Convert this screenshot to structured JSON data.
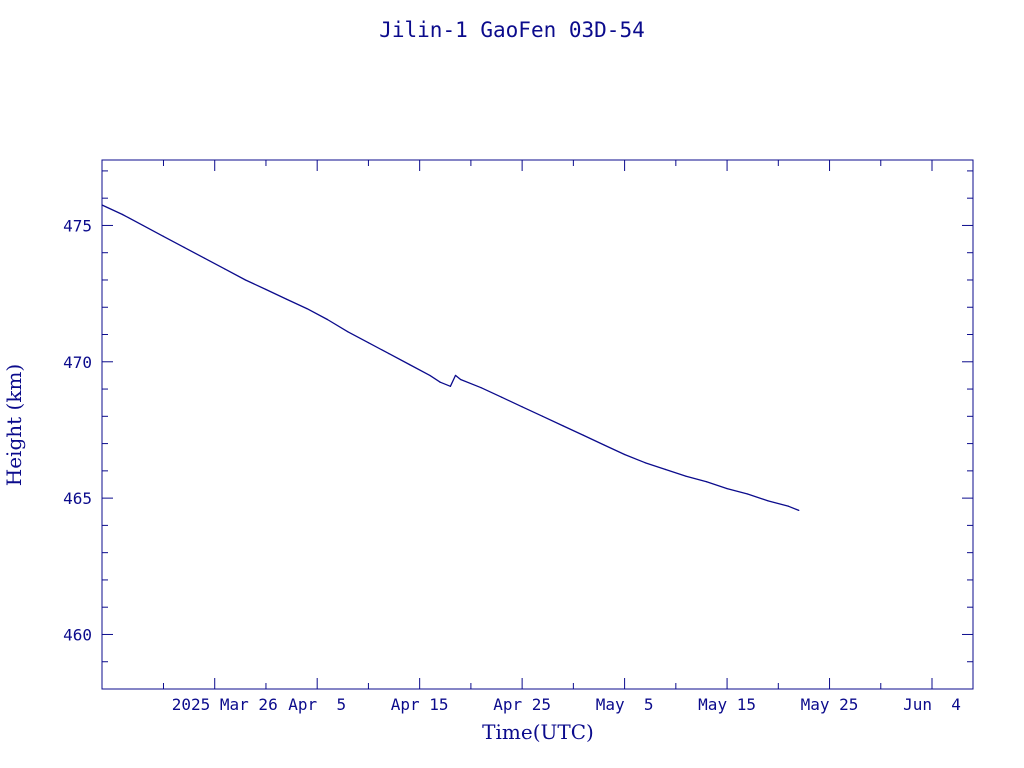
{
  "chart_data": {
    "type": "line",
    "title": "Jilin-1 GaoFen 03D-54",
    "xlabel": "Time(UTC)",
    "ylabel": "Height (km)",
    "x_axis": {
      "type": "date",
      "range": [
        "2025-03-15",
        "2025-06-08"
      ],
      "tick_labels": [
        {
          "date": "2025-03-26",
          "label": "2025 Mar 26"
        },
        {
          "date": "2025-04-05",
          "label": "Apr  5"
        },
        {
          "date": "2025-04-15",
          "label": "Apr 15"
        },
        {
          "date": "2025-04-25",
          "label": "Apr 25"
        },
        {
          "date": "2025-05-05",
          "label": "May  5"
        },
        {
          "date": "2025-05-15",
          "label": "May 15"
        },
        {
          "date": "2025-05-25",
          "label": "May 25"
        },
        {
          "date": "2025-06-04",
          "label": "Jun  4"
        }
      ],
      "minor_tick_dates": [
        "2025-03-21",
        "2025-03-31",
        "2025-04-10",
        "2025-04-20",
        "2025-04-30",
        "2025-05-10",
        "2025-05-20",
        "2025-05-30"
      ]
    },
    "y_axis": {
      "range": [
        458,
        477.4
      ],
      "major_ticks": [
        460,
        465,
        470,
        475
      ],
      "minor_ticks": [
        459,
        461,
        462,
        463,
        464,
        466,
        467,
        468,
        469,
        471,
        472,
        473,
        474,
        476,
        477
      ]
    },
    "grid": false,
    "colors": {
      "line": "#0b0b8c",
      "axes": "#0b0b8c",
      "text": "#0b0b8c",
      "background": "#ffffff"
    },
    "series": [
      {
        "points": [
          {
            "x": "2025-03-15",
            "y": 475.75
          },
          {
            "x": "2025-03-17",
            "y": 475.4
          },
          {
            "x": "2025-03-19",
            "y": 475.0
          },
          {
            "x": "2025-03-21",
            "y": 474.6
          },
          {
            "x": "2025-03-23",
            "y": 474.2
          },
          {
            "x": "2025-03-25",
            "y": 473.8
          },
          {
            "x": "2025-03-27",
            "y": 473.4
          },
          {
            "x": "2025-03-29",
            "y": 473.0
          },
          {
            "x": "2025-03-31",
            "y": 472.65
          },
          {
            "x": "2025-04-02",
            "y": 472.3
          },
          {
            "x": "2025-04-04",
            "y": 471.95
          },
          {
            "x": "2025-04-06",
            "y": 471.55
          },
          {
            "x": "2025-04-08",
            "y": 471.1
          },
          {
            "x": "2025-04-10",
            "y": 470.7
          },
          {
            "x": "2025-04-12",
            "y": 470.3
          },
          {
            "x": "2025-04-14",
            "y": 469.9
          },
          {
            "x": "2025-04-16",
            "y": 469.5
          },
          {
            "x": "2025-04-17",
            "y": 469.25
          },
          {
            "x": "2025-04-18",
            "y": 469.1
          },
          {
            "x": "2025-04-18T12:00",
            "y": 469.5
          },
          {
            "x": "2025-04-19",
            "y": 469.35
          },
          {
            "x": "2025-04-21",
            "y": 469.05
          },
          {
            "x": "2025-04-23",
            "y": 468.7
          },
          {
            "x": "2025-04-25",
            "y": 468.35
          },
          {
            "x": "2025-04-27",
            "y": 468.0
          },
          {
            "x": "2025-04-29",
            "y": 467.65
          },
          {
            "x": "2025-05-01",
            "y": 467.3
          },
          {
            "x": "2025-05-03",
            "y": 466.95
          },
          {
            "x": "2025-05-05",
            "y": 466.6
          },
          {
            "x": "2025-05-07",
            "y": 466.3
          },
          {
            "x": "2025-05-09",
            "y": 466.05
          },
          {
            "x": "2025-05-11",
            "y": 465.8
          },
          {
            "x": "2025-05-13",
            "y": 465.6
          },
          {
            "x": "2025-05-15",
            "y": 465.35
          },
          {
            "x": "2025-05-17",
            "y": 465.15
          },
          {
            "x": "2025-05-19",
            "y": 464.9
          },
          {
            "x": "2025-05-21",
            "y": 464.7
          },
          {
            "x": "2025-05-22",
            "y": 464.55
          }
        ]
      }
    ]
  }
}
